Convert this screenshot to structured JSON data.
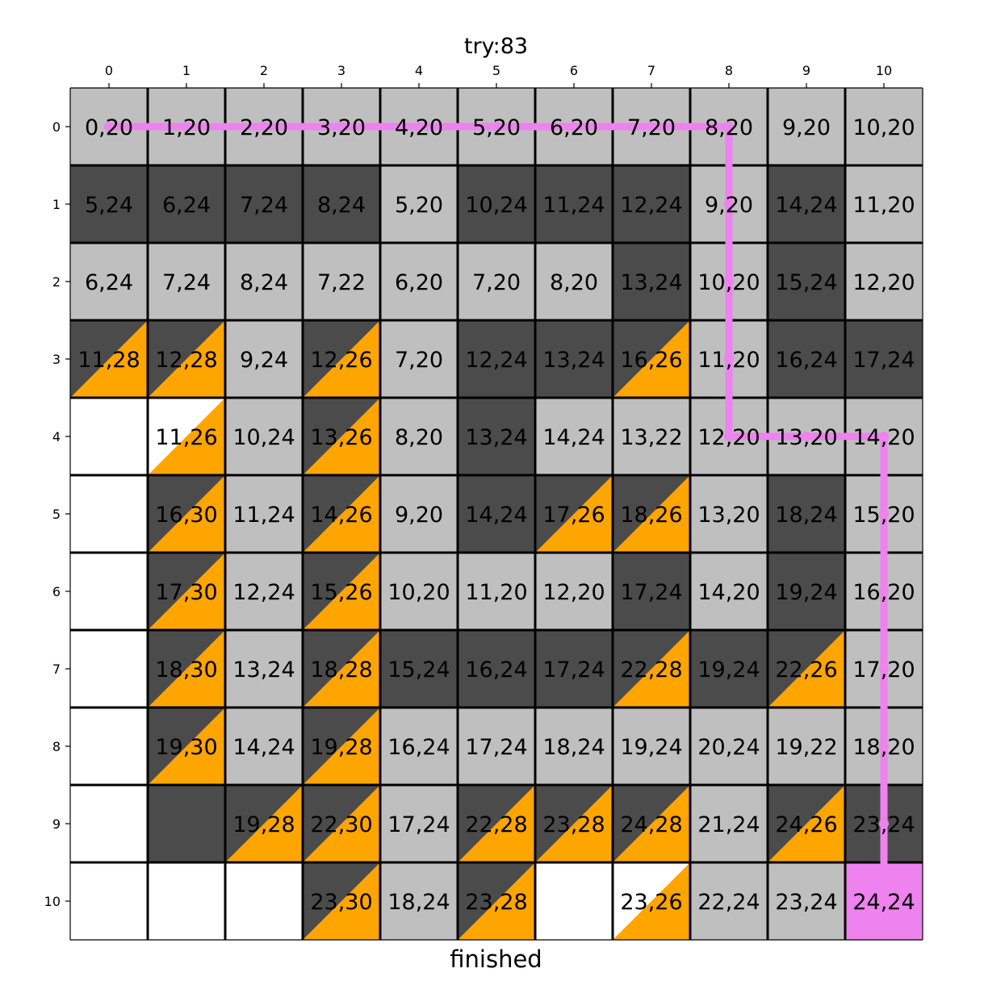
{
  "title": "try:83",
  "status": "finished",
  "col_ticks": [
    "0",
    "1",
    "2",
    "3",
    "4",
    "5",
    "6",
    "7",
    "8",
    "9",
    "10"
  ],
  "row_ticks": [
    "0",
    "1",
    "2",
    "3",
    "4",
    "5",
    "6",
    "7",
    "8",
    "9",
    "10"
  ],
  "colors": {
    "light": "#bfbfbf",
    "dark": "#4b4b4b",
    "white": "#ffffff",
    "orange": "#ffa500",
    "path": "#ee82ee",
    "grid": "#000000"
  },
  "cell_types": {
    "L": "light cell",
    "D": "dark cell",
    "W": "empty cell",
    "DO": "dark cell with orange corner",
    "WO": "empty cell with orange corner",
    "P": "goal cell"
  },
  "grid": [
    [
      {
        "t": "L",
        "v": "0,20"
      },
      {
        "t": "L",
        "v": "1,20"
      },
      {
        "t": "L",
        "v": "2,20"
      },
      {
        "t": "L",
        "v": "3,20"
      },
      {
        "t": "L",
        "v": "4,20"
      },
      {
        "t": "L",
        "v": "5,20"
      },
      {
        "t": "L",
        "v": "6,20"
      },
      {
        "t": "L",
        "v": "7,20"
      },
      {
        "t": "L",
        "v": "8,20"
      },
      {
        "t": "L",
        "v": "9,20"
      },
      {
        "t": "L",
        "v": "10,20"
      }
    ],
    [
      {
        "t": "D",
        "v": "5,24"
      },
      {
        "t": "D",
        "v": "6,24"
      },
      {
        "t": "D",
        "v": "7,24"
      },
      {
        "t": "D",
        "v": "8,24"
      },
      {
        "t": "L",
        "v": "5,20"
      },
      {
        "t": "D",
        "v": "10,24"
      },
      {
        "t": "D",
        "v": "11,24"
      },
      {
        "t": "D",
        "v": "12,24"
      },
      {
        "t": "L",
        "v": "9,20"
      },
      {
        "t": "D",
        "v": "14,24"
      },
      {
        "t": "L",
        "v": "11,20"
      }
    ],
    [
      {
        "t": "L",
        "v": "6,24"
      },
      {
        "t": "L",
        "v": "7,24"
      },
      {
        "t": "L",
        "v": "8,24"
      },
      {
        "t": "L",
        "v": "7,22"
      },
      {
        "t": "L",
        "v": "6,20"
      },
      {
        "t": "L",
        "v": "7,20"
      },
      {
        "t": "L",
        "v": "8,20"
      },
      {
        "t": "D",
        "v": "13,24"
      },
      {
        "t": "L",
        "v": "10,20"
      },
      {
        "t": "D",
        "v": "15,24"
      },
      {
        "t": "L",
        "v": "12,20"
      }
    ],
    [
      {
        "t": "DO",
        "v": "11,28"
      },
      {
        "t": "DO",
        "v": "12,28"
      },
      {
        "t": "L",
        "v": "9,24"
      },
      {
        "t": "DO",
        "v": "12,26"
      },
      {
        "t": "L",
        "v": "7,20"
      },
      {
        "t": "D",
        "v": "12,24"
      },
      {
        "t": "D",
        "v": "13,24"
      },
      {
        "t": "DO",
        "v": "16,26"
      },
      {
        "t": "L",
        "v": "11,20"
      },
      {
        "t": "D",
        "v": "16,24"
      },
      {
        "t": "D",
        "v": "17,24"
      }
    ],
    [
      {
        "t": "W",
        "v": ""
      },
      {
        "t": "WO",
        "v": "11,26"
      },
      {
        "t": "L",
        "v": "10,24"
      },
      {
        "t": "DO",
        "v": "13,26"
      },
      {
        "t": "L",
        "v": "8,20"
      },
      {
        "t": "D",
        "v": "13,24"
      },
      {
        "t": "L",
        "v": "14,24"
      },
      {
        "t": "L",
        "v": "13,22"
      },
      {
        "t": "L",
        "v": "12,20"
      },
      {
        "t": "L",
        "v": "13,20"
      },
      {
        "t": "L",
        "v": "14,20"
      }
    ],
    [
      {
        "t": "W",
        "v": ""
      },
      {
        "t": "DO",
        "v": "16,30"
      },
      {
        "t": "L",
        "v": "11,24"
      },
      {
        "t": "DO",
        "v": "14,26"
      },
      {
        "t": "L",
        "v": "9,20"
      },
      {
        "t": "D",
        "v": "14,24"
      },
      {
        "t": "DO",
        "v": "17,26"
      },
      {
        "t": "DO",
        "v": "18,26"
      },
      {
        "t": "L",
        "v": "13,20"
      },
      {
        "t": "D",
        "v": "18,24"
      },
      {
        "t": "L",
        "v": "15,20"
      }
    ],
    [
      {
        "t": "W",
        "v": ""
      },
      {
        "t": "DO",
        "v": "17,30"
      },
      {
        "t": "L",
        "v": "12,24"
      },
      {
        "t": "DO",
        "v": "15,26"
      },
      {
        "t": "L",
        "v": "10,20"
      },
      {
        "t": "L",
        "v": "11,20"
      },
      {
        "t": "L",
        "v": "12,20"
      },
      {
        "t": "D",
        "v": "17,24"
      },
      {
        "t": "L",
        "v": "14,20"
      },
      {
        "t": "D",
        "v": "19,24"
      },
      {
        "t": "L",
        "v": "16,20"
      }
    ],
    [
      {
        "t": "W",
        "v": ""
      },
      {
        "t": "DO",
        "v": "18,30"
      },
      {
        "t": "L",
        "v": "13,24"
      },
      {
        "t": "DO",
        "v": "18,28"
      },
      {
        "t": "D",
        "v": "15,24"
      },
      {
        "t": "D",
        "v": "16,24"
      },
      {
        "t": "D",
        "v": "17,24"
      },
      {
        "t": "DO",
        "v": "22,28"
      },
      {
        "t": "D",
        "v": "19,24"
      },
      {
        "t": "DO",
        "v": "22,26"
      },
      {
        "t": "L",
        "v": "17,20"
      }
    ],
    [
      {
        "t": "W",
        "v": ""
      },
      {
        "t": "DO",
        "v": "19,30"
      },
      {
        "t": "L",
        "v": "14,24"
      },
      {
        "t": "DO",
        "v": "19,28"
      },
      {
        "t": "L",
        "v": "16,24"
      },
      {
        "t": "L",
        "v": "17,24"
      },
      {
        "t": "L",
        "v": "18,24"
      },
      {
        "t": "L",
        "v": "19,24"
      },
      {
        "t": "L",
        "v": "20,24"
      },
      {
        "t": "L",
        "v": "19,22"
      },
      {
        "t": "L",
        "v": "18,20"
      }
    ],
    [
      {
        "t": "W",
        "v": ""
      },
      {
        "t": "D",
        "v": ""
      },
      {
        "t": "DO",
        "v": "19,28"
      },
      {
        "t": "DO",
        "v": "22,30"
      },
      {
        "t": "L",
        "v": "17,24"
      },
      {
        "t": "DO",
        "v": "22,28"
      },
      {
        "t": "DO",
        "v": "23,28"
      },
      {
        "t": "DO",
        "v": "24,28"
      },
      {
        "t": "L",
        "v": "21,24"
      },
      {
        "t": "DO",
        "v": "24,26"
      },
      {
        "t": "D",
        "v": "23,24"
      }
    ],
    [
      {
        "t": "W",
        "v": ""
      },
      {
        "t": "W",
        "v": ""
      },
      {
        "t": "W",
        "v": ""
      },
      {
        "t": "DO",
        "v": "23,30"
      },
      {
        "t": "L",
        "v": "18,24"
      },
      {
        "t": "DO",
        "v": "23,28"
      },
      {
        "t": "W",
        "v": ""
      },
      {
        "t": "WO",
        "v": "23,26"
      },
      {
        "t": "L",
        "v": "22,24"
      },
      {
        "t": "L",
        "v": "23,24"
      },
      {
        "t": "P",
        "v": "24,24"
      }
    ]
  ],
  "path": [
    [
      0,
      0
    ],
    [
      0,
      1
    ],
    [
      0,
      2
    ],
    [
      0,
      3
    ],
    [
      0,
      4
    ],
    [
      0,
      5
    ],
    [
      0,
      6
    ],
    [
      0,
      7
    ],
    [
      0,
      8
    ],
    [
      1,
      8
    ],
    [
      2,
      8
    ],
    [
      3,
      8
    ],
    [
      4,
      8
    ],
    [
      4,
      9
    ],
    [
      4,
      10
    ],
    [
      5,
      10
    ],
    [
      6,
      10
    ],
    [
      7,
      10
    ],
    [
      8,
      10
    ],
    [
      9,
      10
    ],
    [
      10,
      10
    ]
  ]
}
